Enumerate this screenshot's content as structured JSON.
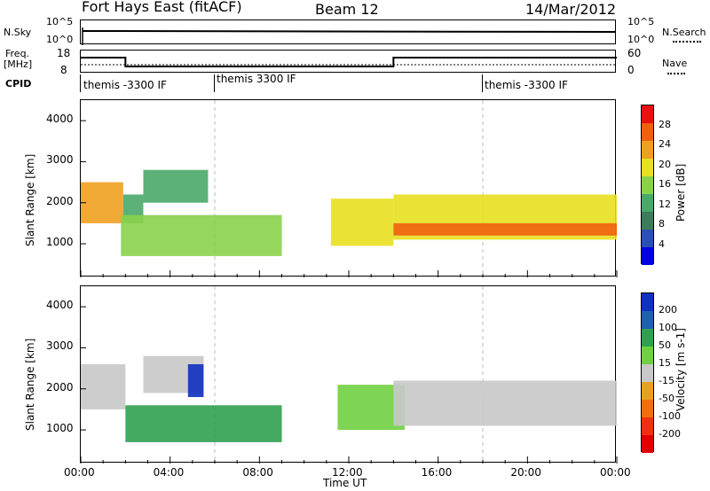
{
  "header": {
    "station": "Fort Hays East (fitACF)",
    "beam": "Beam 12",
    "date": "14/Mar/2012"
  },
  "strips": {
    "nsky_label": "N.Sky",
    "nsky_ticks": [
      "10^5",
      "10^0"
    ],
    "nsearch_label": "N.Search",
    "nsearch_ticks": [
      "10^5",
      "10^0"
    ],
    "freq_label_1": "Freq.",
    "freq_label_2": "[MHz]",
    "freq_ticks": [
      "18",
      "8"
    ],
    "nave_label": "Nave",
    "nave_ticks": [
      "60",
      "0"
    ],
    "cpid_label": "CPID",
    "cpid_segments": [
      {
        "start_hour": 0,
        "label": "themis -3300 IF"
      },
      {
        "start_hour": 6,
        "label": "themis 3300 IF"
      },
      {
        "start_hour": 18,
        "label": "themis -3300 IF"
      }
    ],
    "freq_steps": [
      {
        "start_hour": 0,
        "end_hour": 2,
        "value_mhz": 15
      },
      {
        "start_hour": 2,
        "end_hour": 14,
        "value_mhz": 10
      },
      {
        "start_hour": 14,
        "end_hour": 24,
        "value_mhz": 15
      }
    ]
  },
  "colors": {
    "power_scale": [
      "#0000dd",
      "#2a4fb5",
      "#3b7c5a",
      "#4aa86a",
      "#8ad24a",
      "#e8e020",
      "#f0a020",
      "#f06010",
      "#e81010"
    ],
    "velocity_scale": [
      "#1030c0",
      "#2060b0",
      "#30a050",
      "#70d040",
      "#c8c8c8",
      "#e8a020",
      "#f07010",
      "#f03010",
      "#e00000"
    ],
    "range_gray": "#bbbbbb"
  },
  "chart_data": [
    {
      "type": "heatmap",
      "title": "",
      "xlabel": "Time UT",
      "ylabel": "Slant Range [km]",
      "xlim": [
        0,
        24
      ],
      "ylim": [
        180,
        4500
      ],
      "xticks": [
        "00:00",
        "04:00",
        "08:00",
        "12:00",
        "16:00",
        "20:00",
        "00:00"
      ],
      "yticks": [
        "1000",
        "2000",
        "3000",
        "4000"
      ],
      "colorbar_label": "Power [dB]",
      "colorbar_ticks": [
        "28",
        "24",
        "20",
        "16",
        "12",
        "8",
        "4"
      ],
      "colorbar_range": [
        0,
        32
      ],
      "regions": [
        {
          "t0": 0.0,
          "t1": 1.9,
          "r0": 1500,
          "r1": 2500,
          "level": 22
        },
        {
          "t0": 1.9,
          "t1": 2.8,
          "r0": 1500,
          "r1": 2200,
          "level": 14
        },
        {
          "t0": 2.8,
          "t1": 5.7,
          "r0": 2000,
          "r1": 2800,
          "level": 14
        },
        {
          "t0": 1.8,
          "t1": 9.0,
          "r0": 700,
          "r1": 1700,
          "level": 16
        },
        {
          "t0": 11.2,
          "t1": 14.0,
          "r0": 950,
          "r1": 2100,
          "level": 18
        },
        {
          "t0": 14.0,
          "t1": 24.0,
          "r0": 1100,
          "r1": 2200,
          "level": 18
        },
        {
          "t0": 14.0,
          "t1": 24.0,
          "r0": 1200,
          "r1": 1500,
          "level": 28
        }
      ]
    },
    {
      "type": "heatmap",
      "title": "",
      "xlabel": "Time UT",
      "ylabel": "Slant Range [km]",
      "xlim": [
        0,
        24
      ],
      "ylim": [
        180,
        4500
      ],
      "xticks": [
        "00:00",
        "04:00",
        "08:00",
        "12:00",
        "16:00",
        "20:00",
        "00:00"
      ],
      "yticks": [
        "1000",
        "2000",
        "3000",
        "4000"
      ],
      "colorbar_label": "Velocity [m s-1]",
      "colorbar_ticks": [
        "200",
        "100",
        "50",
        "15",
        "-15",
        "-50",
        "-100",
        "-200"
      ],
      "regions": [
        {
          "t0": 0.0,
          "t1": 2.0,
          "r0": 1500,
          "r1": 2600,
          "level": 0
        },
        {
          "t0": 2.8,
          "t1": 5.5,
          "r0": 1900,
          "r1": 2800,
          "level": 0
        },
        {
          "t0": 4.8,
          "t1": 5.5,
          "r0": 1800,
          "r1": 2600,
          "level": 200
        },
        {
          "t0": 2.0,
          "t1": 9.0,
          "r0": 700,
          "r1": 1600,
          "level": 40
        },
        {
          "t0": 11.5,
          "t1": 14.5,
          "r0": 1000,
          "r1": 2100,
          "level": 30
        },
        {
          "t0": 14.0,
          "t1": 24.0,
          "r0": 1100,
          "r1": 2200,
          "level": 0
        }
      ]
    }
  ]
}
